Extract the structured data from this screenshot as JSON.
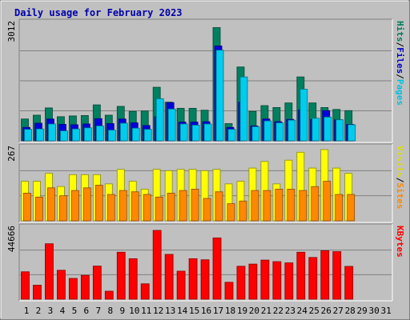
{
  "chart_data": [
    {
      "type": "bar",
      "title": "Daily usage for February 2023",
      "categories": [
        "1",
        "2",
        "3",
        "4",
        "5",
        "6",
        "7",
        "8",
        "9",
        "10",
        "11",
        "12",
        "13",
        "14",
        "15",
        "16",
        "17",
        "18",
        "19",
        "20",
        "21",
        "22",
        "23",
        "24",
        "25",
        "26",
        "27",
        "28",
        "29",
        "30",
        "31"
      ],
      "category_colors": [
        "#000000",
        "#000000",
        "#000000",
        "#000000",
        "#007c5e",
        "#007c5e",
        "#000000",
        "#000000",
        "#000000",
        "#000000",
        "#007c5e",
        "#007c5e",
        "#000000",
        "#000000",
        "#000000",
        "#000000",
        "#000000",
        "#007c5e",
        "#007c5e",
        "#000000",
        "#000000",
        "#000000",
        "#000000",
        "#000000",
        "#007c5e",
        "#007c5e",
        "#000000",
        "#000000",
        "#000000",
        "#000000",
        "#000000"
      ],
      "ylabel_max": "3012",
      "ylim": [
        0,
        3012
      ],
      "right_labels": [
        {
          "text": "Hits",
          "color": "#007c5e"
        },
        {
          "text": "/",
          "color": "#000000"
        },
        {
          "text": "Files",
          "color": "#0000cc"
        },
        {
          "text": "/",
          "color": "#000000"
        },
        {
          "text": "Pages",
          "color": "#00c0e0"
        }
      ],
      "series": [
        {
          "name": "Hits",
          "color": "#00805f",
          "values": [
            570,
            670,
            860,
            630,
            650,
            660,
            940,
            670,
            900,
            770,
            780,
            1400,
            1010,
            850,
            850,
            800,
            2960,
            450,
            1930,
            770,
            920,
            870,
            990,
            1670,
            990,
            870,
            820,
            790,
            null,
            null,
            null
          ]
        },
        {
          "name": "Files",
          "color": "#0000dd",
          "values": [
            350,
            460,
            570,
            430,
            420,
            440,
            580,
            450,
            570,
            470,
            400,
            630,
            1000,
            490,
            490,
            500,
            2480,
            350,
            1010,
            390,
            570,
            500,
            560,
            810,
            560,
            790,
            550,
            430,
            null,
            null,
            null
          ]
        },
        {
          "name": "Pages",
          "color": "#00ccee",
          "values": [
            300,
            310,
            440,
            260,
            310,
            340,
            390,
            280,
            460,
            330,
            300,
            1100,
            830,
            440,
            410,
            440,
            2370,
            300,
            1670,
            370,
            520,
            470,
            540,
            1350,
            590,
            620,
            550,
            420,
            null,
            null,
            null
          ]
        }
      ]
    },
    {
      "type": "bar",
      "ylabel_max": "267",
      "ylim": [
        0,
        267
      ],
      "right_labels": [
        {
          "text": "Visits",
          "color": "#dddd00"
        },
        {
          "text": "/",
          "color": "#000000"
        },
        {
          "text": "Sites",
          "color": "#ff8800"
        }
      ],
      "series": [
        {
          "name": "Visits",
          "color": "#ffff00",
          "values": [
            150,
            150,
            180,
            130,
            175,
            175,
            175,
            140,
            195,
            150,
            120,
            195,
            190,
            195,
            195,
            190,
            195,
            140,
            150,
            200,
            225,
            140,
            230,
            260,
            200,
            270,
            200,
            180,
            null,
            null,
            null
          ]
        },
        {
          "name": "Sites",
          "color": "#ff8800",
          "values": [
            105,
            90,
            125,
            95,
            115,
            125,
            135,
            100,
            115,
            110,
            100,
            90,
            105,
            115,
            120,
            85,
            110,
            65,
            75,
            115,
            115,
            120,
            120,
            115,
            130,
            150,
            100,
            100,
            null,
            null,
            null
          ]
        }
      ]
    },
    {
      "type": "bar",
      "ylabel_max": "44666",
      "ylim": [
        0,
        44666
      ],
      "right_labels": [
        {
          "text": "KBytes",
          "color": "#ff0000"
        }
      ],
      "series": [
        {
          "name": "KBytes",
          "color": "#ff0000",
          "values": [
            17800,
            9100,
            36000,
            18800,
            13500,
            15500,
            21500,
            5200,
            30500,
            26300,
            10000,
            44666,
            29100,
            18200,
            26300,
            25600,
            39800,
            11000,
            21400,
            22800,
            25400,
            24400,
            23600,
            30500,
            27100,
            31500,
            30900,
            21300,
            null,
            null,
            null
          ]
        }
      ]
    }
  ]
}
